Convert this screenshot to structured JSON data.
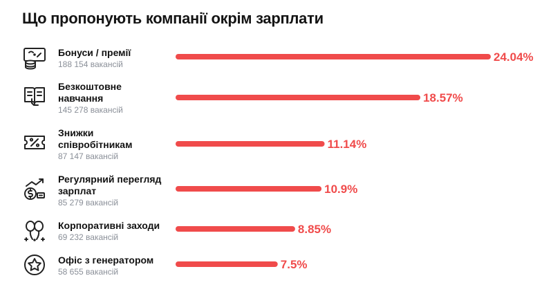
{
  "page": {
    "title": "Що пропонують компанії окрім зарплати"
  },
  "colors": {
    "bar": "#f04b4b",
    "value": "#f04b4b",
    "sub": "#8a8f98",
    "icon": "#222222"
  },
  "chart_data": {
    "type": "bar",
    "orientation": "horizontal",
    "title": "Що пропонують компанії окрім зарплати",
    "categories": [
      "Бонуси / премії",
      "Безкоштовне навчання",
      "Знижки співробітникам",
      "Регулярний перегляд зарплат",
      "Корпоративні заходи",
      "Офіс з генератором"
    ],
    "values": [
      24.04,
      18.57,
      11.14,
      10.9,
      8.85,
      7.5
    ],
    "value_labels": [
      "24.04%",
      "18.57%",
      "11.14%",
      "10.9%",
      "8.85%",
      "7.5%"
    ],
    "vacancies": [
      "188 154 вакансій",
      "145 278 вакансій",
      "87 147 вакансій",
      "85 279 вакансій",
      "69 232 вакансій",
      "58 655 вакансій"
    ],
    "icons": [
      "money-coins-icon",
      "book-icon",
      "discount-ticket-icon",
      "salary-growth-icon",
      "balloons-icon",
      "star-icon"
    ],
    "grid": false,
    "legend": "none"
  }
}
